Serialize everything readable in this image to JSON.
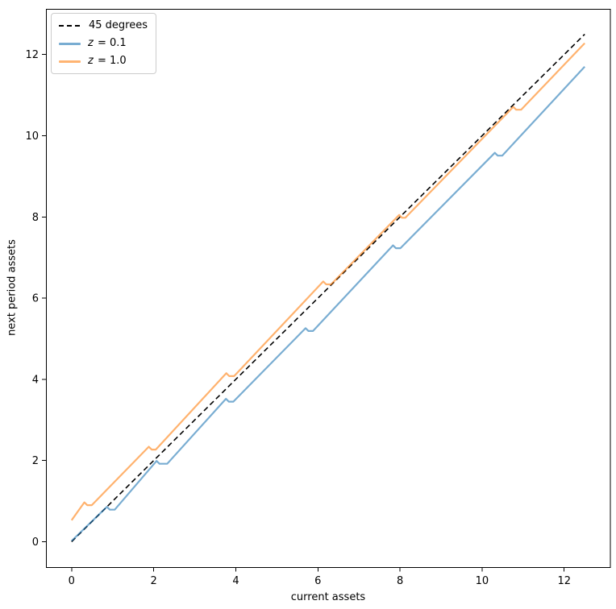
{
  "chart_data": {
    "type": "line",
    "title": "",
    "xlabel": "current assets",
    "ylabel": "next period assets",
    "xlim": [
      -0.625,
      13.125
    ],
    "ylim": [
      -0.625,
      13.125
    ],
    "xticks": [
      0,
      2,
      4,
      6,
      8,
      10,
      12
    ],
    "yticks": [
      0,
      2,
      4,
      6,
      8,
      10,
      12
    ],
    "grid": false,
    "legend_position": "upper-left",
    "axis_color": "#000000",
    "tick_label_color": "#000000",
    "series": [
      {
        "name": "45 degrees",
        "color": "#000000",
        "width": 1.6,
        "opacity": 1,
        "dash": "6.5 4",
        "points": [
          [
            0,
            0
          ],
          [
            12.5,
            12.5
          ]
        ]
      },
      {
        "name": "z = 0.1",
        "color": "#1f77b4",
        "width": 2.2,
        "opacity": 0.6,
        "dash": "",
        "points": [
          [
            0,
            0.02
          ],
          [
            0.86,
            0.86
          ],
          [
            0.93,
            0.79
          ],
          [
            1.05,
            0.79
          ],
          [
            2.07,
            1.99
          ],
          [
            2.14,
            1.92
          ],
          [
            2.33,
            1.92
          ],
          [
            3.76,
            3.52
          ],
          [
            3.83,
            3.45
          ],
          [
            3.94,
            3.45
          ],
          [
            5.7,
            5.26
          ],
          [
            5.77,
            5.19
          ],
          [
            5.88,
            5.19
          ],
          [
            7.83,
            7.3
          ],
          [
            7.9,
            7.23
          ],
          [
            8.01,
            7.23
          ],
          [
            10.31,
            9.58
          ],
          [
            10.38,
            9.51
          ],
          [
            10.49,
            9.51
          ],
          [
            12.5,
            11.7
          ]
        ]
      },
      {
        "name": "z = 1.0",
        "color": "#ff7f0e",
        "width": 2.2,
        "opacity": 0.6,
        "dash": "",
        "points": [
          [
            0,
            0.53
          ],
          [
            0.31,
            0.97
          ],
          [
            0.38,
            0.9
          ],
          [
            0.49,
            0.9
          ],
          [
            1.88,
            2.34
          ],
          [
            1.95,
            2.27
          ],
          [
            2.05,
            2.27
          ],
          [
            3.77,
            4.15
          ],
          [
            3.84,
            4.08
          ],
          [
            3.96,
            4.08
          ],
          [
            6.13,
            6.41
          ],
          [
            6.2,
            6.34
          ],
          [
            6.32,
            6.34
          ],
          [
            7.98,
            8.05
          ],
          [
            8.05,
            7.98
          ],
          [
            8.13,
            7.98
          ],
          [
            10.76,
            10.71
          ],
          [
            10.83,
            10.64
          ],
          [
            10.95,
            10.64
          ],
          [
            12.5,
            12.28
          ]
        ]
      }
    ],
    "legend": [
      {
        "var": "",
        "label": "45 degrees",
        "sample": "dashed",
        "color": "#000000"
      },
      {
        "var": "z",
        "label": " = 0.1",
        "sample": "solid",
        "color": "#79add2"
      },
      {
        "var": "z",
        "label": " = 1.0",
        "sample": "solid",
        "color": "#ffb472"
      }
    ]
  }
}
